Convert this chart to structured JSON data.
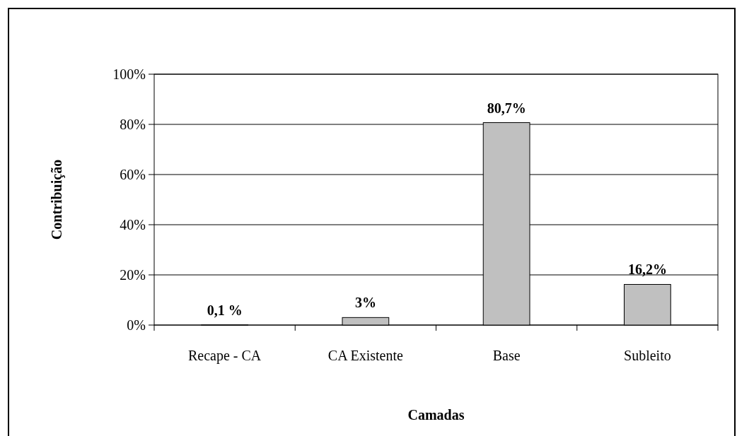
{
  "chart_data": {
    "type": "bar",
    "xlabel": "Camadas",
    "ylabel": "Contribuição",
    "categories": [
      "Recape - CA",
      "CA Existente",
      "Base",
      "Subleito"
    ],
    "values": [
      0.1,
      3,
      80.7,
      16.2
    ],
    "value_labels": [
      "0,1 %",
      "3%",
      "80,7%",
      "16,2%"
    ],
    "color": "#c0c0c0",
    "ylim": [
      0,
      100
    ],
    "yticks": [
      {
        "value": 0,
        "label": "0%"
      },
      {
        "value": 20,
        "label": "20%"
      },
      {
        "value": 40,
        "label": "40%"
      },
      {
        "value": 60,
        "label": "60%"
      },
      {
        "value": 80,
        "label": "80%"
      },
      {
        "value": 100,
        "label": "100%"
      }
    ],
    "grid": "y"
  }
}
